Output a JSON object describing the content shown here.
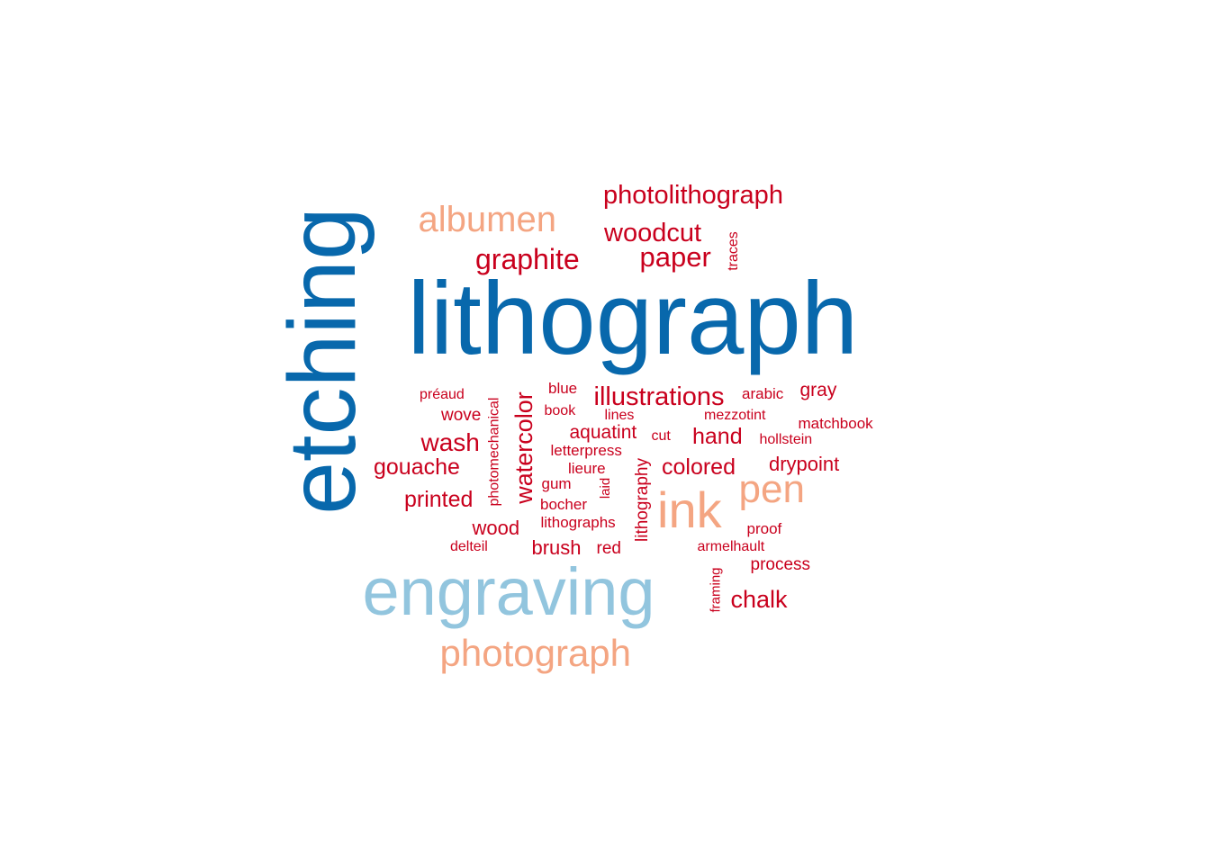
{
  "palette": {
    "dark_blue": "#0868ac",
    "light_blue": "#92c5de",
    "salmon": "#f4a582",
    "red": "#c9001d"
  },
  "words": [
    {
      "text": "lithograph",
      "color": "dark_blue"
    },
    {
      "text": "etching",
      "color": "dark_blue"
    },
    {
      "text": "engraving",
      "color": "light_blue"
    },
    {
      "text": "photograph",
      "color": "salmon"
    },
    {
      "text": "albumen",
      "color": "salmon"
    },
    {
      "text": "ink",
      "color": "salmon"
    },
    {
      "text": "pen",
      "color": "salmon"
    },
    {
      "text": "photolithograph",
      "color": "red"
    },
    {
      "text": "woodcut",
      "color": "red"
    },
    {
      "text": "paper",
      "color": "red"
    },
    {
      "text": "graphite",
      "color": "red"
    },
    {
      "text": "traces",
      "color": "red"
    },
    {
      "text": "illustrations",
      "color": "red"
    },
    {
      "text": "gray",
      "color": "red"
    },
    {
      "text": "arabic",
      "color": "red"
    },
    {
      "text": "blue",
      "color": "red"
    },
    {
      "text": "préaud",
      "color": "red"
    },
    {
      "text": "photomechanical",
      "color": "red"
    },
    {
      "text": "watercolor",
      "color": "red"
    },
    {
      "text": "wove",
      "color": "red"
    },
    {
      "text": "book",
      "color": "red"
    },
    {
      "text": "lines",
      "color": "red"
    },
    {
      "text": "mezzotint",
      "color": "red"
    },
    {
      "text": "matchbook",
      "color": "red"
    },
    {
      "text": "aquatint",
      "color": "red"
    },
    {
      "text": "hand",
      "color": "red"
    },
    {
      "text": "wash",
      "color": "red"
    },
    {
      "text": "cut",
      "color": "red"
    },
    {
      "text": "hollstein",
      "color": "red"
    },
    {
      "text": "letterpress",
      "color": "red"
    },
    {
      "text": "gouache",
      "color": "red"
    },
    {
      "text": "lieure",
      "color": "red"
    },
    {
      "text": "colored",
      "color": "red"
    },
    {
      "text": "drypoint",
      "color": "red"
    },
    {
      "text": "gum",
      "color": "red"
    },
    {
      "text": "laid",
      "color": "red"
    },
    {
      "text": "lithography",
      "color": "red"
    },
    {
      "text": "printed",
      "color": "red"
    },
    {
      "text": "bocher",
      "color": "red"
    },
    {
      "text": "wood",
      "color": "red"
    },
    {
      "text": "lithographs",
      "color": "red"
    },
    {
      "text": "proof",
      "color": "red"
    },
    {
      "text": "delteil",
      "color": "red"
    },
    {
      "text": "brush",
      "color": "red"
    },
    {
      "text": "red",
      "color": "red"
    },
    {
      "text": "armelhault",
      "color": "red"
    },
    {
      "text": "process",
      "color": "red"
    },
    {
      "text": "framing",
      "color": "red"
    },
    {
      "text": "chalk",
      "color": "red"
    }
  ]
}
